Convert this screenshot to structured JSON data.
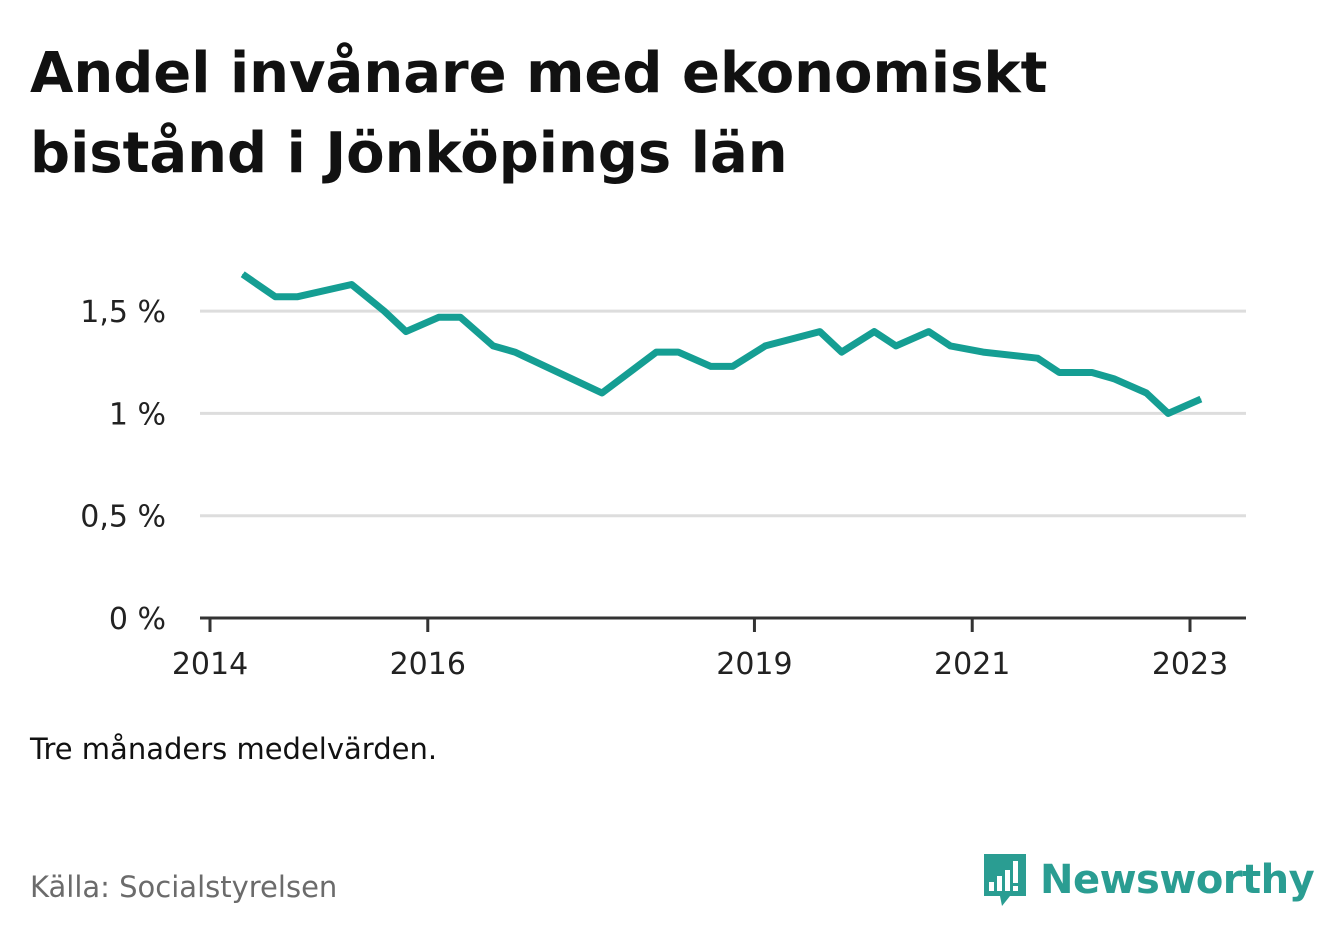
{
  "title": "Andel invånare med ekonomiskt bistånd i Jönköpings län",
  "note": "Tre månaders medelvärden.",
  "source": "Källa: Socialstyrelsen",
  "brand": {
    "name": "Newsworthy",
    "icon": "newsworthy-logo-icon",
    "color": "#2a9d92"
  },
  "chart_data": {
    "type": "line",
    "title": "Andel invånare med ekonomiskt bistånd i Jönköpings län",
    "xlabel": "",
    "ylabel": "",
    "ylim": [
      0,
      1.75
    ],
    "xlim": [
      2014.0,
      2023.4
    ],
    "grid": true,
    "line_color": "#159e93",
    "y_ticks": [
      {
        "value": 0,
        "label": "0 %"
      },
      {
        "value": 0.5,
        "label": "0,5 %"
      },
      {
        "value": 1,
        "label": "1 %"
      },
      {
        "value": 1.5,
        "label": "1,5 %"
      }
    ],
    "x_ticks": [
      {
        "value": 2014,
        "label": "2014"
      },
      {
        "value": 2016,
        "label": "2016"
      },
      {
        "value": 2019,
        "label": "2019"
      },
      {
        "value": 2021,
        "label": "2021"
      },
      {
        "value": 2023,
        "label": "2023"
      }
    ],
    "series": [
      {
        "points": [
          {
            "x": 2014.3,
            "y": 1.68
          },
          {
            "x": 2014.6,
            "y": 1.57
          },
          {
            "x": 2014.8,
            "y": 1.57
          },
          {
            "x": 2015.3,
            "y": 1.63
          },
          {
            "x": 2015.6,
            "y": 1.5
          },
          {
            "x": 2015.8,
            "y": 1.4
          },
          {
            "x": 2016.1,
            "y": 1.47
          },
          {
            "x": 2016.3,
            "y": 1.47
          },
          {
            "x": 2016.6,
            "y": 1.33
          },
          {
            "x": 2016.8,
            "y": 1.3
          },
          {
            "x": 2017.6,
            "y": 1.1
          },
          {
            "x": 2018.1,
            "y": 1.3
          },
          {
            "x": 2018.3,
            "y": 1.3
          },
          {
            "x": 2018.6,
            "y": 1.23
          },
          {
            "x": 2018.8,
            "y": 1.23
          },
          {
            "x": 2019.1,
            "y": 1.33
          },
          {
            "x": 2019.6,
            "y": 1.4
          },
          {
            "x": 2019.8,
            "y": 1.3
          },
          {
            "x": 2020.1,
            "y": 1.4
          },
          {
            "x": 2020.3,
            "y": 1.33
          },
          {
            "x": 2020.6,
            "y": 1.4
          },
          {
            "x": 2020.8,
            "y": 1.33
          },
          {
            "x": 2021.1,
            "y": 1.3
          },
          {
            "x": 2021.6,
            "y": 1.27
          },
          {
            "x": 2021.8,
            "y": 1.2
          },
          {
            "x": 2022.1,
            "y": 1.2
          },
          {
            "x": 2022.3,
            "y": 1.17
          },
          {
            "x": 2022.6,
            "y": 1.1
          },
          {
            "x": 2022.8,
            "y": 1.0
          },
          {
            "x": 2023.1,
            "y": 1.07
          }
        ]
      }
    ]
  }
}
